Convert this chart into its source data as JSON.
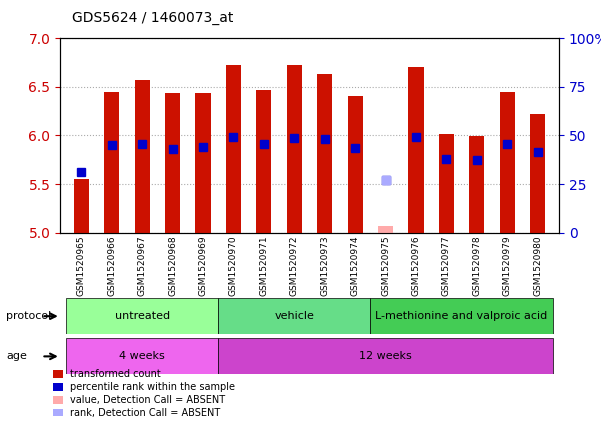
{
  "title": "GDS5624 / 1460073_at",
  "samples": [
    "GSM1520965",
    "GSM1520966",
    "GSM1520967",
    "GSM1520968",
    "GSM1520969",
    "GSM1520970",
    "GSM1520971",
    "GSM1520972",
    "GSM1520973",
    "GSM1520974",
    "GSM1520975",
    "GSM1520976",
    "GSM1520977",
    "GSM1520978",
    "GSM1520979",
    "GSM1520980"
  ],
  "transformed_count": [
    5.55,
    6.45,
    6.57,
    6.44,
    6.44,
    6.72,
    6.47,
    6.72,
    6.63,
    6.4,
    null,
    6.7,
    6.01,
    5.99,
    6.45,
    6.22
  ],
  "percentile_rank": [
    5.62,
    5.9,
    5.91,
    5.86,
    5.88,
    5.98,
    5.91,
    5.97,
    5.96,
    5.87,
    5.54,
    5.98,
    5.76,
    5.75,
    5.91,
    5.83
  ],
  "absent_value": [
    null,
    null,
    null,
    null,
    null,
    null,
    null,
    null,
    null,
    null,
    5.07,
    null,
    null,
    null,
    null,
    null
  ],
  "absent_rank": [
    null,
    null,
    null,
    null,
    null,
    null,
    null,
    null,
    null,
    null,
    5.54,
    null,
    null,
    null,
    null,
    null
  ],
  "ylim": [
    5.0,
    7.0
  ],
  "yticks_left": [
    5.0,
    5.5,
    6.0,
    6.5,
    7.0
  ],
  "yticks_right": [
    0,
    25,
    50,
    75,
    100
  ],
  "bar_color": "#cc1100",
  "rank_color": "#0000cc",
  "absent_bar_color": "#ffaaaa",
  "absent_rank_color": "#aaaaff",
  "baseline": 5.0,
  "protocol_groups": [
    {
      "label": "untreated",
      "start": 0,
      "end": 5,
      "color": "#99ff99"
    },
    {
      "label": "vehicle",
      "start": 5,
      "end": 10,
      "color": "#66dd88"
    },
    {
      "label": "L-methionine and valproic acid",
      "start": 10,
      "end": 16,
      "color": "#44cc55"
    }
  ],
  "age_groups": [
    {
      "label": "4 weeks",
      "start": 0,
      "end": 5,
      "color": "#ee66ee"
    },
    {
      "label": "12 weeks",
      "start": 5,
      "end": 16,
      "color": "#cc44cc"
    }
  ],
  "grid_color": "#aaaaaa",
  "bar_width": 0.5,
  "rank_marker_size": 6
}
